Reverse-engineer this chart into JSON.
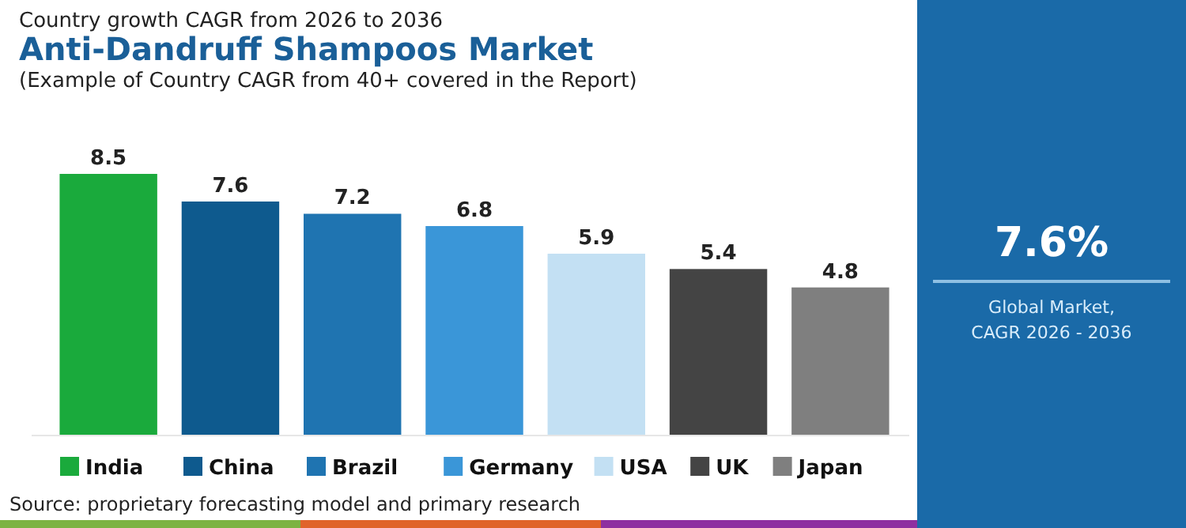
{
  "chart_data": [
    {
      "type": "bar",
      "title": "Anti-Dandruff Shampoos Market",
      "subtitle": "Country growth CAGR from 2026 to 2036",
      "annotations": [
        "(Example of Country CAGR from 40+ covered in the Report)",
        "Source: proprietary forecasting model and primary research"
      ],
      "categories": [
        "India",
        "China",
        "Brazil",
        "Germany",
        "USA",
        "UK",
        "Japan"
      ],
      "values": [
        8.5,
        7.6,
        7.2,
        6.8,
        5.9,
        5.4,
        4.8
      ],
      "colors": [
        "#1aaa3c",
        "#0e5a8e",
        "#1f74b1",
        "#3a96d8",
        "#c3e0f3",
        "#444444",
        "#7f7f7f"
      ],
      "data_labels": true
    },
    {
      "type": "other",
      "title": "7.6%",
      "subtitle": "Global Market, CAGR 2026 - 2036"
    }
  ]
}
